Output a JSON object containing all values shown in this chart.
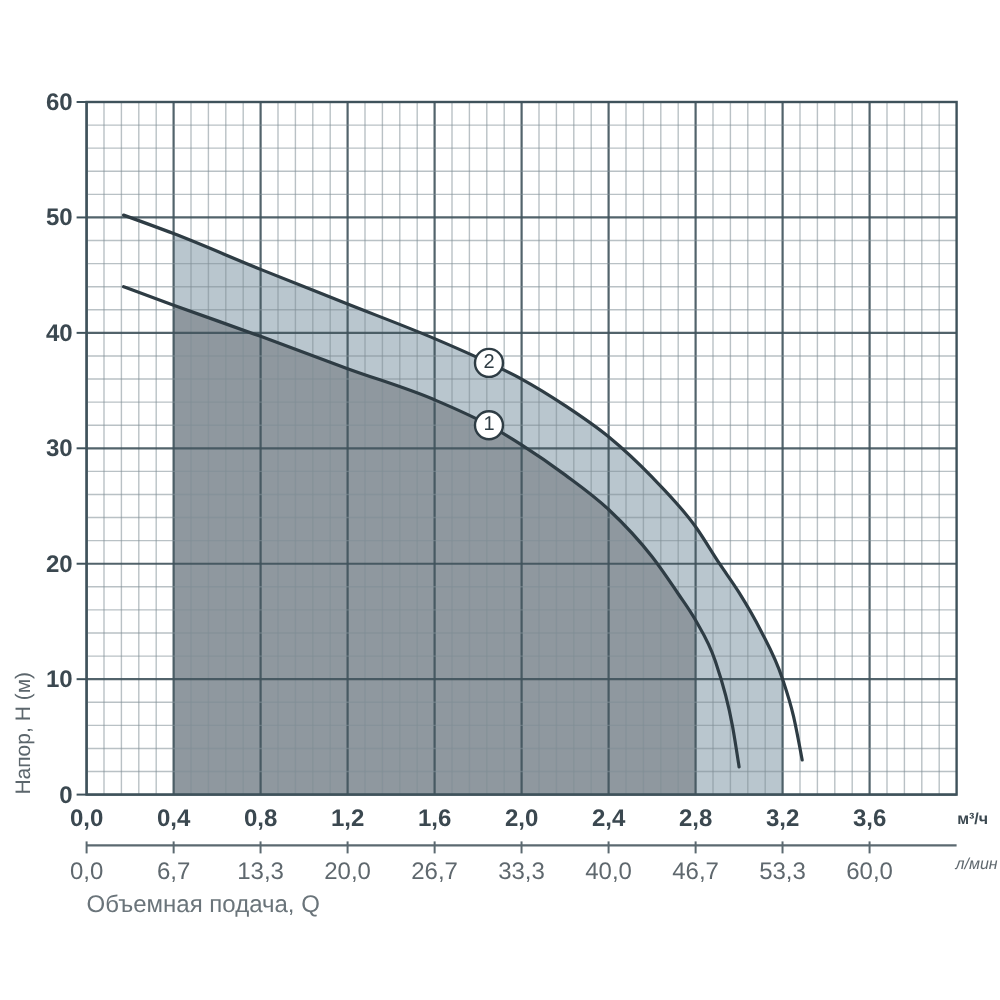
{
  "chart_data": {
    "type": "line",
    "xlabel": "м³/ч",
    "x2label": "л/мин",
    "ylabel": "Напор, H (м)",
    "annotations": [
      "Объемная подача, Q"
    ],
    "xlim": [
      0,
      4
    ],
    "ylim": [
      0,
      60
    ],
    "x2lim": [
      0,
      66.67
    ],
    "grid": true,
    "xticks": [
      {
        "value": 0,
        "label": "0,0"
      },
      {
        "value": 0.08,
        "label": null
      },
      {
        "value": 0.16,
        "label": null
      },
      {
        "value": 0.24,
        "label": null
      },
      {
        "value": 0.32,
        "label": null
      },
      {
        "value": 0.4,
        "label": "0,4"
      },
      {
        "value": 0.48,
        "label": null
      },
      {
        "value": 0.56,
        "label": null
      },
      {
        "value": 0.64,
        "label": null
      },
      {
        "value": 0.72,
        "label": null
      },
      {
        "value": 0.8,
        "label": "0,8"
      },
      {
        "value": 0.88,
        "label": null
      },
      {
        "value": 0.96,
        "label": null
      },
      {
        "value": 1.04,
        "label": null
      },
      {
        "value": 1.12,
        "label": null
      },
      {
        "value": 1.2,
        "label": "1,2"
      },
      {
        "value": 1.28,
        "label": null
      },
      {
        "value": 1.36,
        "label": null
      },
      {
        "value": 1.44,
        "label": null
      },
      {
        "value": 1.52,
        "label": null
      },
      {
        "value": 1.6,
        "label": "1,6"
      },
      {
        "value": 1.68,
        "label": null
      },
      {
        "value": 1.76,
        "label": null
      },
      {
        "value": 1.84,
        "label": null
      },
      {
        "value": 1.92,
        "label": null
      },
      {
        "value": 2,
        "label": "2,0"
      },
      {
        "value": 2.08,
        "label": null
      },
      {
        "value": 2.16,
        "label": null
      },
      {
        "value": 2.24,
        "label": null
      },
      {
        "value": 2.32,
        "label": null
      },
      {
        "value": 2.4,
        "label": "2,4"
      },
      {
        "value": 2.48,
        "label": null
      },
      {
        "value": 2.56,
        "label": null
      },
      {
        "value": 2.64,
        "label": null
      },
      {
        "value": 2.72,
        "label": null
      },
      {
        "value": 2.8,
        "label": "2,8"
      },
      {
        "value": 2.88,
        "label": null
      },
      {
        "value": 2.96,
        "label": null
      },
      {
        "value": 3.04,
        "label": null
      },
      {
        "value": 3.12,
        "label": null
      },
      {
        "value": 3.2,
        "label": "3,2"
      },
      {
        "value": 3.28,
        "label": null
      },
      {
        "value": 3.36,
        "label": null
      },
      {
        "value": 3.44,
        "label": null
      },
      {
        "value": 3.52,
        "label": null
      },
      {
        "value": 3.6,
        "label": "3,6"
      },
      {
        "value": 3.68,
        "label": null
      },
      {
        "value": 3.76,
        "label": null
      },
      {
        "value": 3.84,
        "label": null
      },
      {
        "value": 3.92,
        "label": null
      }
    ],
    "yticks": [
      0,
      {
        "value": 2,
        "label": null
      },
      {
        "value": 4,
        "label": null
      },
      {
        "value": 6,
        "label": null
      },
      {
        "value": 8,
        "label": null
      },
      10,
      {
        "value": 12,
        "label": null
      },
      {
        "value": 14,
        "label": null
      },
      {
        "value": 16,
        "label": null
      },
      {
        "value": 18,
        "label": null
      },
      20,
      {
        "value": 22,
        "label": null
      },
      {
        "value": 24,
        "label": null
      },
      {
        "value": 26,
        "label": null
      },
      {
        "value": 28,
        "label": null
      },
      30,
      {
        "value": 32,
        "label": null
      },
      {
        "value": 34,
        "label": null
      },
      {
        "value": 36,
        "label": null
      },
      {
        "value": 38,
        "label": null
      },
      40,
      {
        "value": 42,
        "label": null
      },
      {
        "value": 44,
        "label": null
      },
      {
        "value": 46,
        "label": null
      },
      {
        "value": 48,
        "label": null
      },
      50,
      {
        "value": 52,
        "label": null
      },
      {
        "value": 54,
        "label": null
      },
      {
        "value": 56,
        "label": null
      },
      {
        "value": 58,
        "label": null
      },
      60
    ],
    "x2ticks": [
      {
        "value": 0,
        "label": "0,0"
      },
      {
        "value": 6.67,
        "label": "6,7"
      },
      {
        "value": 13.33,
        "label": "13,3"
      },
      {
        "value": 20,
        "label": "20,0"
      },
      {
        "value": 26.67,
        "label": "26,7"
      },
      {
        "value": 33.33,
        "label": "33,3"
      },
      {
        "value": 40,
        "label": "40,0"
      },
      {
        "value": 46.67,
        "label": "46,7"
      },
      {
        "value": 53.33,
        "label": "53,3"
      },
      {
        "value": 60,
        "label": "60,0"
      }
    ],
    "series": [
      {
        "type": "area",
        "color": "#b9c6ce",
        "x": [
          0.4,
          0.8,
          1.2,
          1.6,
          1.85,
          2.0,
          2.2,
          2.4,
          2.6,
          2.8,
          2.91,
          3.0,
          3.1,
          3.2
        ],
        "values": [
          48.6,
          45.5,
          42.5,
          39.5,
          37.4,
          36,
          33.7,
          31,
          27.5,
          23.2,
          20,
          17.5,
          14.2,
          10
        ]
      },
      {
        "type": "area",
        "color": "#8f989f",
        "x": [
          0.4,
          0.8,
          1.2,
          1.6,
          1.85,
          2.0,
          2.2,
          2.4,
          2.6,
          2.72,
          2.8
        ],
        "values": [
          42.4,
          39.7,
          36.9,
          34.2,
          32,
          30.3,
          27.7,
          24.7,
          20.6,
          17.4,
          15.1
        ]
      },
      {
        "name": "2",
        "color": "#2e3c44",
        "x": [
          0.17,
          0.4,
          0.8,
          1.2,
          1.6,
          1.85,
          2.0,
          2.2,
          2.4,
          2.6,
          2.8,
          2.91,
          3.0,
          3.1,
          3.2,
          3.25,
          3.29
        ],
        "values": [
          50.2,
          48.6,
          45.5,
          42.5,
          39.5,
          37.4,
          36,
          33.7,
          31,
          27.5,
          23.2,
          20,
          17.5,
          14.2,
          10,
          6.8,
          3
        ]
      },
      {
        "name": "1",
        "color": "#2e3c44",
        "x": [
          0.17,
          0.4,
          0.8,
          1.2,
          1.6,
          1.85,
          2.0,
          2.2,
          2.4,
          2.6,
          2.72,
          2.8,
          2.89,
          2.97,
          3.0
        ],
        "values": [
          44,
          42.4,
          39.7,
          36.9,
          34.2,
          32,
          30.3,
          27.7,
          24.7,
          20.6,
          17.4,
          15.1,
          11.6,
          5.9,
          2.4
        ]
      }
    ]
  }
}
